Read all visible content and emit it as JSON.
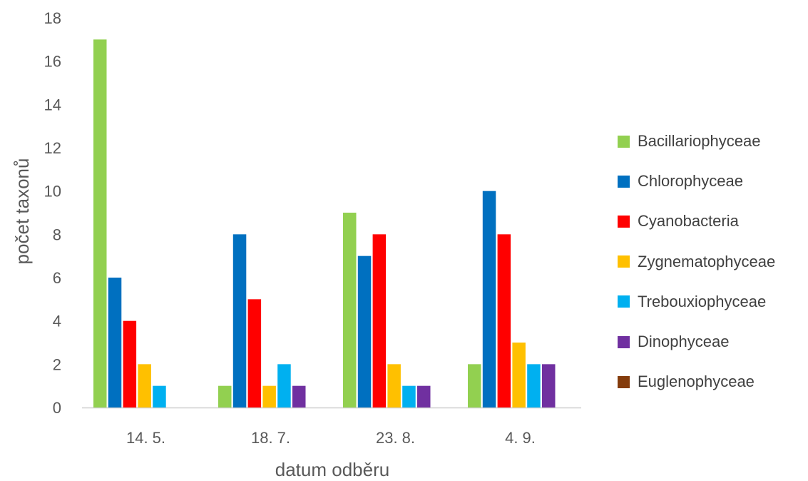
{
  "chart_data": {
    "type": "bar",
    "title": "",
    "xlabel": "datum odběru",
    "ylabel": "počet taxonů",
    "ylim": [
      0,
      18
    ],
    "yticks": [
      "0",
      "2",
      "4",
      "6",
      "8",
      "10",
      "12",
      "14",
      "16",
      "18"
    ],
    "categories": [
      "14. 5.",
      "18. 7.",
      "23. 8.",
      "4. 9."
    ],
    "grid": false,
    "legend_position": "right",
    "series": [
      {
        "name": "Bacillariophyceae",
        "color": "#92d050",
        "values": [
          17,
          1,
          9,
          2
        ]
      },
      {
        "name": "Chlorophyceae",
        "color": "#0070c0",
        "values": [
          6,
          8,
          7,
          10
        ]
      },
      {
        "name": "Cyanobacteria",
        "color": "#ff0000",
        "values": [
          4,
          5,
          8,
          8
        ]
      },
      {
        "name": "Zygnematophyceae",
        "color": "#ffc000",
        "values": [
          2,
          1,
          2,
          3
        ]
      },
      {
        "name": "Trebouxiophyceae",
        "color": "#00b0f0",
        "values": [
          1,
          2,
          1,
          2
        ]
      },
      {
        "name": "Dinophyceae",
        "color": "#7030a0",
        "values": [
          0,
          1,
          1,
          2
        ]
      },
      {
        "name": "Euglenophyceae",
        "color": "#843c0c",
        "values": [
          0,
          0,
          0,
          0
        ]
      }
    ]
  }
}
